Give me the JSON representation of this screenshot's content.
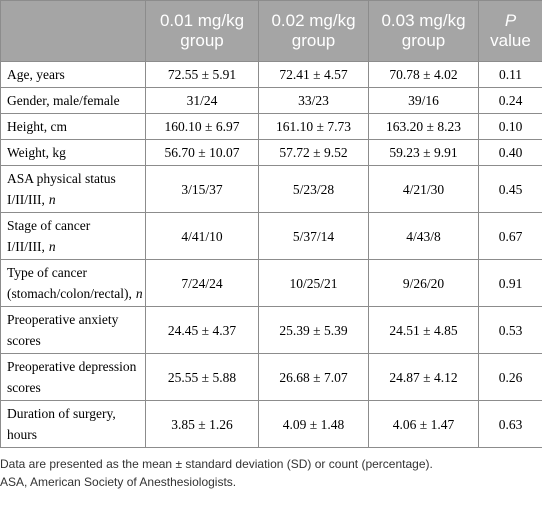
{
  "table": {
    "columns": [
      "0.01 mg/kg group",
      "0.02 mg/kg group",
      "0.03 mg/kg group"
    ],
    "p_header": {
      "italic": "P",
      "rest": "value"
    },
    "rows": [
      {
        "label": "Age, years",
        "values": [
          "72.55 ± 5.91",
          "72.41 ± 4.57",
          "70.78 ± 4.02",
          "0.11"
        ]
      },
      {
        "label": "Gender, male/female",
        "values": [
          "31/24",
          "33/23",
          "39/16",
          "0.24"
        ]
      },
      {
        "label": "Height, cm",
        "values": [
          "160.10 ± 6.97",
          "161.10 ± 7.73",
          "163.20 ± 8.23",
          "0.10"
        ]
      },
      {
        "label": "Weight, kg",
        "values": [
          "56.70 ± 10.07",
          "57.72 ± 9.52",
          "59.23 ± 9.91",
          "0.40"
        ]
      },
      {
        "label": "ASA physical status I/II/III,",
        "label_italic": "n",
        "values": [
          "3/15/37",
          "5/23/28",
          "4/21/30",
          "0.45"
        ]
      },
      {
        "label": "Stage of cancer I/II/III,",
        "label_italic": "n",
        "values": [
          "4/41/10",
          "5/37/14",
          "4/43/8",
          "0.67"
        ]
      },
      {
        "label": "Type of cancer (stomach/colon/rectal),",
        "label_italic": "n",
        "values": [
          "7/24/24",
          "10/25/21",
          "9/26/20",
          "0.91"
        ]
      },
      {
        "label": "Preoperative anxiety scores",
        "values": [
          "24.45 ± 4.37",
          "25.39 ± 5.39",
          "24.51 ± 4.85",
          "0.53"
        ]
      },
      {
        "label": "Preoperative depression scores",
        "values": [
          "25.55 ± 5.88",
          "26.68 ± 7.07",
          "24.87 ± 4.12",
          "0.26"
        ]
      },
      {
        "label": "Duration of surgery, hours",
        "values": [
          "3.85 ± 1.26",
          "4.09 ± 1.48",
          "4.06 ± 1.47",
          "0.63"
        ]
      }
    ],
    "footnotes": [
      "Data are presented as the mean ± standard deviation (SD) or count (percentage).",
      "ASA, American Society of Anesthesiologists."
    ]
  }
}
